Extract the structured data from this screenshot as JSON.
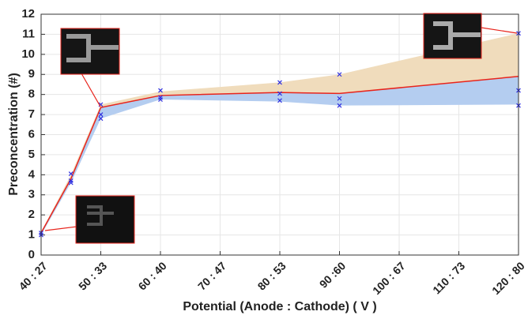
{
  "chart_data": {
    "type": "line",
    "ylabel": "Preconcentration (#)",
    "xlabel": "Potential (Anode : Cathode) ( V )",
    "x": [
      40,
      45,
      50,
      60,
      80,
      90,
      120
    ],
    "series": [
      {
        "color": "#e8241c",
        "values": [
          1.1,
          3.8,
          7.35,
          7.95,
          8.1,
          8.05,
          8.9
        ]
      },
      {
        "color": "#f0dcbc",
        "values": [
          1.15,
          4.0,
          7.5,
          8.15,
          8.6,
          9.0,
          11.05
        ]
      },
      {
        "color": "#b4cdf0",
        "values": [
          1.0,
          3.6,
          6.8,
          7.75,
          7.65,
          7.45,
          7.5
        ]
      }
    ],
    "points": {
      "color": "#3030e0",
      "x": [
        40,
        40,
        45,
        45,
        45,
        50,
        50,
        50,
        60,
        60,
        60,
        80,
        80,
        80,
        90,
        90,
        90,
        120,
        120,
        120
      ],
      "y": [
        1.1,
        1.0,
        4.05,
        3.7,
        3.6,
        7.5,
        7.0,
        6.8,
        8.2,
        7.85,
        7.75,
        8.6,
        8.05,
        7.7,
        9.0,
        7.8,
        7.45,
        11.05,
        8.2,
        7.45
      ]
    },
    "xlim": [
      40,
      120
    ],
    "xticks": [
      {
        "value": 40,
        "label": "40 : 27"
      },
      {
        "value": 50,
        "label": "50 : 33"
      },
      {
        "value": 60,
        "label": "60 : 40"
      },
      {
        "value": 70,
        "label": "70 : 47"
      },
      {
        "value": 80,
        "label": "80 : 53"
      },
      {
        "value": 90,
        "label": "90 :60"
      },
      {
        "value": 100,
        "label": "100 : 67"
      },
      {
        "value": 110,
        "label": "110 : 73"
      },
      {
        "value": 120,
        "label": "120 : 80"
      }
    ],
    "ylim": [
      0,
      12
    ],
    "yticks": [
      0,
      1,
      2,
      3,
      4,
      5,
      6,
      7,
      8,
      9,
      10,
      11,
      12
    ],
    "grid": true
  }
}
